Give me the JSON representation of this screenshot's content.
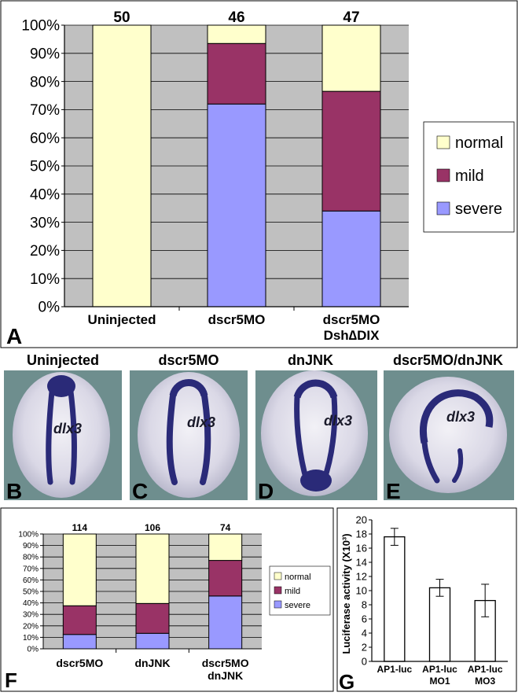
{
  "panel_a": {
    "letter": "A",
    "counts": [
      "50",
      "46",
      "47"
    ],
    "legend": [
      "normal",
      "mild",
      "severe"
    ]
  },
  "panel_photos": [
    {
      "letter": "B",
      "title": "Uninjected",
      "gene": "dlx3"
    },
    {
      "letter": "C",
      "title": "dscr5MO",
      "gene": "dlx3"
    },
    {
      "letter": "D",
      "title": "dnJNK",
      "gene": "dlx3"
    },
    {
      "letter": "E",
      "title": "dscr5MO/dnJNK",
      "gene": "dlx3"
    }
  ],
  "panel_f": {
    "letter": "F",
    "counts": [
      "114",
      "106",
      "74"
    ],
    "legend": [
      "normal",
      "mild",
      "severe"
    ]
  },
  "panel_g": {
    "letter": "G",
    "ylabel": "Luciferase activity (X10³)"
  },
  "colors": {
    "normal": "#FFFFCC",
    "mild": "#993366",
    "severe": "#9999FF",
    "plot_bg": "#C0C0C0",
    "embryo_bg": "#6E8E8E",
    "stain": "#2A2A78"
  },
  "chart_data": [
    {
      "type": "bar",
      "stacked": true,
      "percent": true,
      "categories": [
        "Uninjected",
        "dscr5MO",
        "dscr5MO\nDsh∆DIX"
      ],
      "series": [
        {
          "name": "severe",
          "values": [
            0,
            72,
            34
          ]
        },
        {
          "name": "mild",
          "values": [
            0,
            21.5,
            42.5
          ]
        },
        {
          "name": "normal",
          "values": [
            100,
            6.5,
            23.5
          ]
        }
      ],
      "ylim": [
        0,
        100
      ],
      "yticks": [
        "0%",
        "10%",
        "20%",
        "30%",
        "40%",
        "50%",
        "60%",
        "70%",
        "80%",
        "90%",
        "100%"
      ],
      "grid": true,
      "legend": "right"
    },
    {
      "type": "bar",
      "stacked": true,
      "percent": true,
      "categories": [
        "dscr5MO",
        "dnJNK",
        "dscr5MO\ndnJNK"
      ],
      "series": [
        {
          "name": "severe",
          "values": [
            12.5,
            13.5,
            46
          ]
        },
        {
          "name": "mild",
          "values": [
            25,
            26,
            31
          ]
        },
        {
          "name": "normal",
          "values": [
            62.5,
            60.5,
            23
          ]
        }
      ],
      "ylim": [
        0,
        100
      ],
      "yticks": [
        "0%",
        "10%",
        "20%",
        "30%",
        "40%",
        "50%",
        "60%",
        "70%",
        "80%",
        "90%",
        "100%"
      ],
      "grid": true,
      "legend": "right"
    },
    {
      "type": "bar",
      "categories": [
        "AP1-luc",
        "AP1-luc\nMO1",
        "AP1-luc\nMO3"
      ],
      "values": [
        17.6,
        10.4,
        8.6
      ],
      "errors": [
        1.2,
        1.2,
        2.3
      ],
      "ylabel": "Luciferase activity (X10³)",
      "ylim": [
        0,
        20
      ],
      "yticks": [
        "0",
        "2",
        "4",
        "6",
        "8",
        "10",
        "12",
        "14",
        "16",
        "18",
        "20"
      ]
    }
  ]
}
